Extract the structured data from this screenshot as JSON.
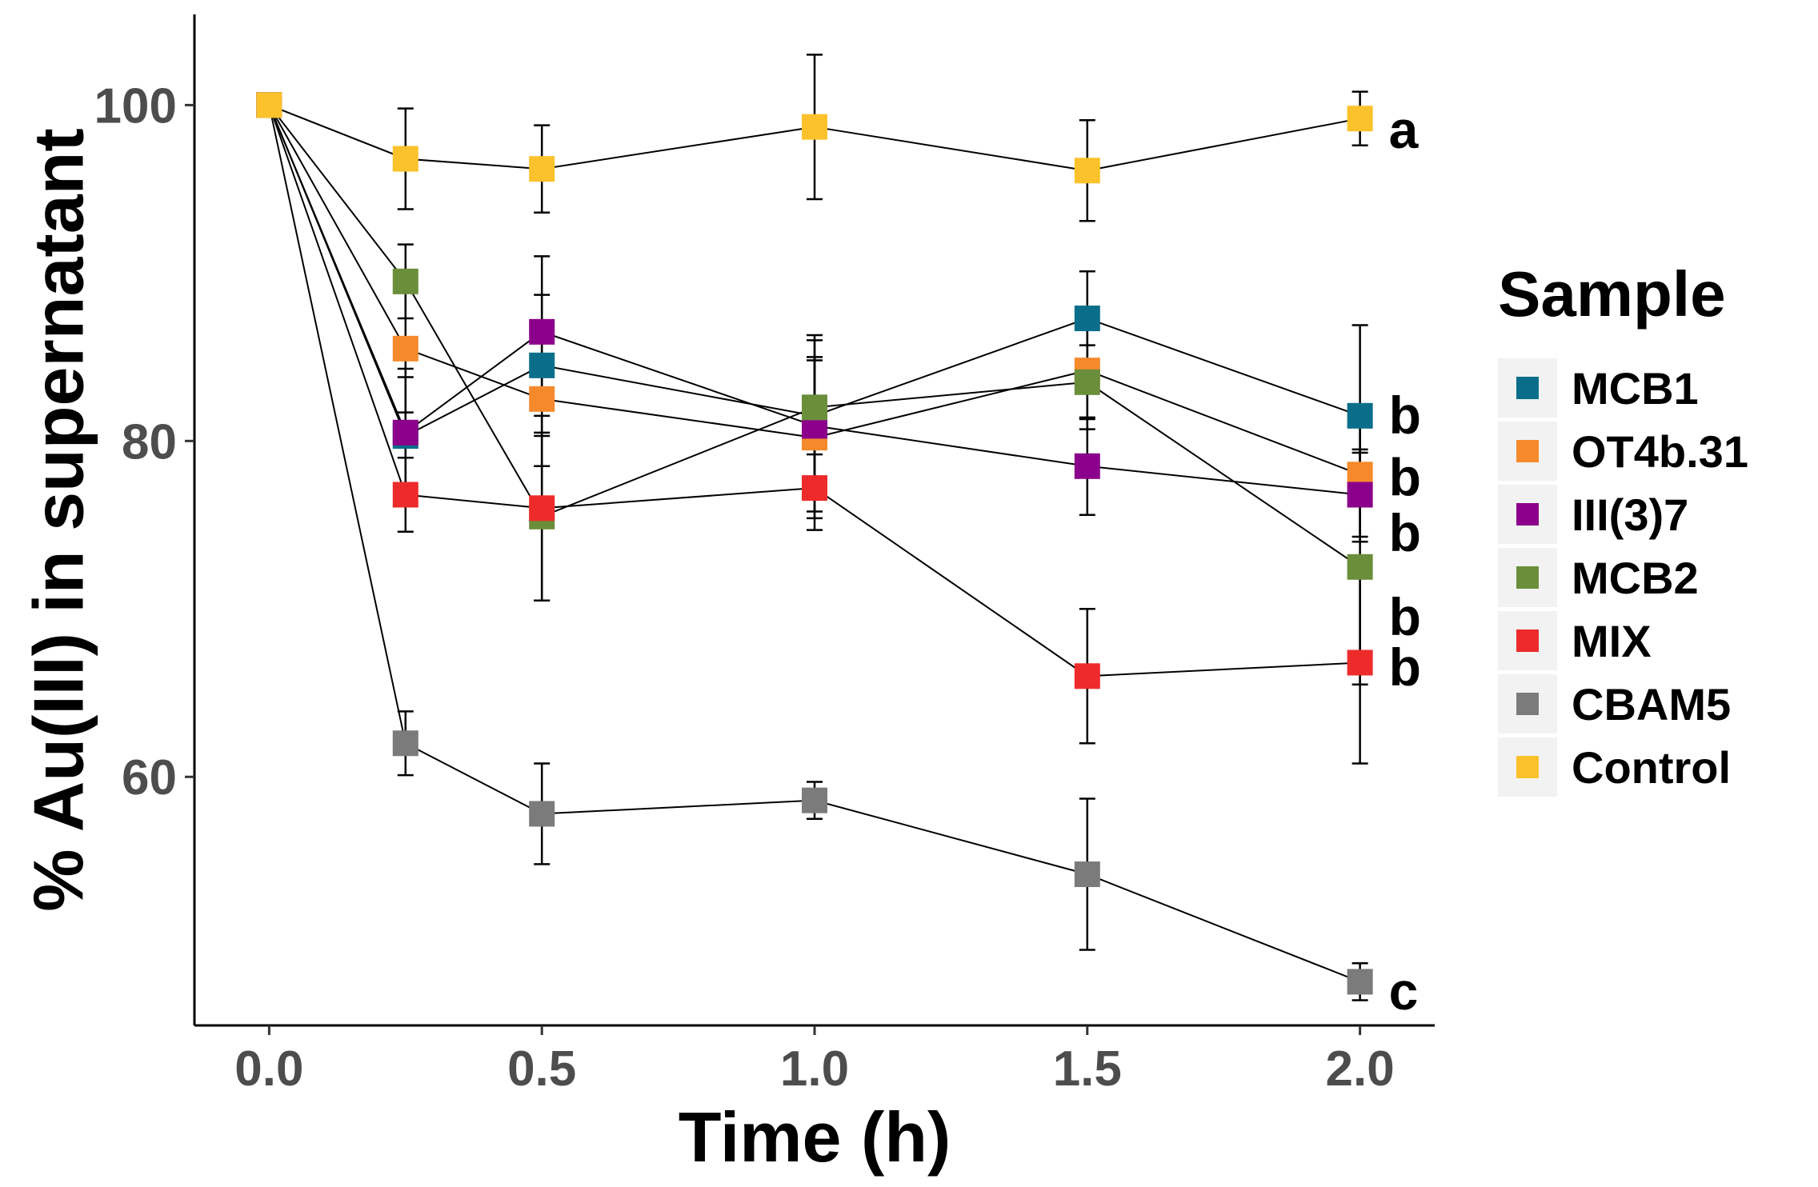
{
  "chart_data": {
    "type": "line",
    "title": "",
    "xlabel": "Time (h)",
    "ylabel": "% Au(III) in supernatant",
    "xlim": [
      -0.137,
      2.137
    ],
    "ylim": [
      45.2,
      105.4
    ],
    "x_ticks": [
      0.0,
      0.5,
      1.0,
      1.5,
      2.0
    ],
    "x_tick_labels": [
      "0.0",
      "0.5",
      "1.0",
      "1.5",
      "2.0"
    ],
    "y_ticks": [
      60,
      80,
      100
    ],
    "y_tick_labels": [
      "60",
      "80",
      "100"
    ],
    "grid": false,
    "legend_title": "Sample",
    "legend_position": "right",
    "x": [
      0,
      0.25,
      0.5,
      1.0,
      1.5,
      2.0
    ],
    "series": [
      {
        "name": "MCB1",
        "color": "#0a6e8a",
        "values": [
          100,
          80.3,
          84.5,
          81.5,
          87.3,
          81.5
        ],
        "err": [
          0,
          3.5,
          4.2,
          4.8,
          2.8,
          5.4
        ]
      },
      {
        "name": "OT4b.31",
        "color": "#f58a2d",
        "values": [
          100,
          85.5,
          82.5,
          80.2,
          84.2,
          78.0
        ],
        "err": [
          0,
          3.8,
          4.0,
          4.8,
          3.5,
          4.0
        ]
      },
      {
        "name": "III(3)7",
        "color": "#8b008b",
        "values": [
          100,
          80.5,
          86.5,
          80.9,
          78.5,
          76.8
        ],
        "err": [
          0,
          3.8,
          4.5,
          5.1,
          2.9,
          2.5
        ]
      },
      {
        "name": "MCB2",
        "color": "#6b8e3a",
        "values": [
          100,
          89.5,
          75.5,
          82.0,
          83.5,
          72.5
        ],
        "err": [
          0,
          2.2,
          5.0,
          2.8,
          2.2,
          7.0
        ]
      },
      {
        "name": "MIX",
        "color": "#ed2b2b",
        "values": [
          100,
          76.8,
          76.0,
          77.2,
          66.0,
          66.8
        ],
        "err": [
          0,
          2.2,
          5.5,
          2.5,
          4.0,
          6.0
        ]
      },
      {
        "name": "CBAM5",
        "color": "#7b7b7b",
        "values": [
          100,
          62.0,
          57.8,
          58.6,
          54.2,
          47.8
        ],
        "err": [
          0,
          1.9,
          3.0,
          1.1,
          4.5,
          1.1
        ]
      },
      {
        "name": "Control",
        "color": "#fcc22c",
        "values": [
          100,
          96.8,
          96.2,
          98.7,
          96.1,
          99.2
        ],
        "err": [
          0,
          3.0,
          2.6,
          4.3,
          3.0,
          1.6
        ]
      }
    ],
    "annotations": [
      {
        "text": "a",
        "x": 2.0,
        "y": 98.5
      },
      {
        "text": "b",
        "x": 2.0,
        "y": 81.5
      },
      {
        "text": "b",
        "x": 2.0,
        "y": 77.8
      },
      {
        "text": "b",
        "x": 2.0,
        "y": 74.5
      },
      {
        "text": "b",
        "x": 2.0,
        "y": 69.5
      },
      {
        "text": "b",
        "x": 2.0,
        "y": 66.5
      },
      {
        "text": "c",
        "x": 2.0,
        "y": 47.2
      }
    ]
  }
}
